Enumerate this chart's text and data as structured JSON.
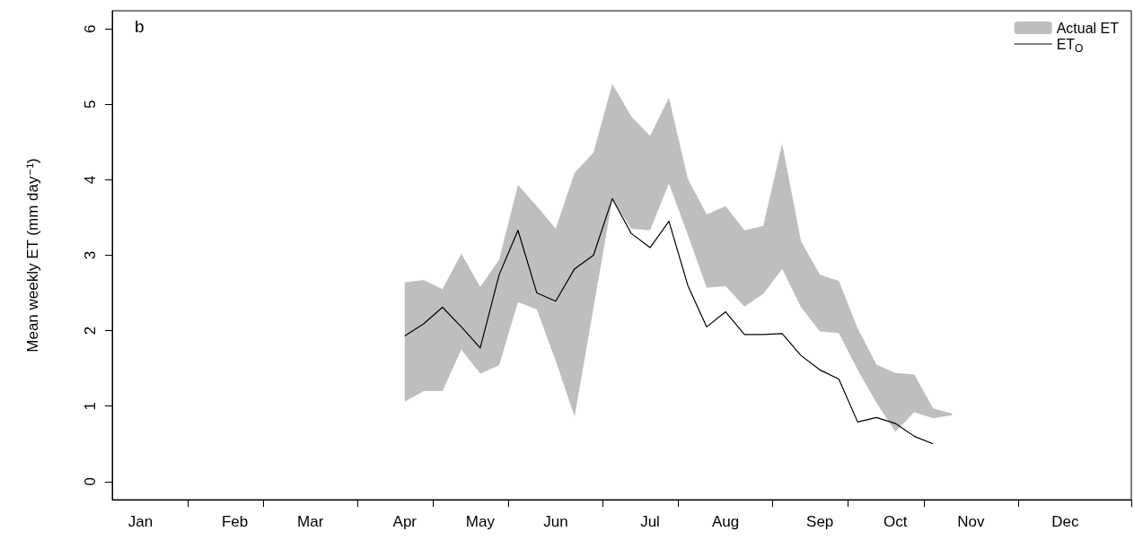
{
  "chart_data": {
    "type": "line",
    "ylabel": "Mean weekly ET (mm day⁻¹)",
    "annotations": [
      "b"
    ],
    "categories": [
      null,
      "Jan",
      null,
      null,
      null,
      null,
      "Feb",
      null,
      null,
      null,
      "Mar",
      null,
      null,
      null,
      null,
      "Apr",
      null,
      null,
      null,
      "May",
      null,
      null,
      null,
      "Jun",
      null,
      null,
      null,
      null,
      "Jul",
      null,
      null,
      null,
      "Aug",
      null,
      null,
      null,
      null,
      "Sep",
      null,
      null,
      null,
      "Oct",
      null,
      null,
      null,
      "Nov",
      null,
      null,
      null,
      null,
      "Dec",
      null,
      null,
      null
    ],
    "ylim": [
      -0.24,
      6.24
    ],
    "yticks": [
      0,
      1,
      2,
      3,
      4,
      5,
      6
    ],
    "grid": false,
    "legend": "top right",
    "marker": "none",
    "line_style": "solid",
    "series": [
      {
        "name": "Actual ET",
        "type": "area",
        "color": "#bebebe",
        "values": [
          null,
          null,
          null,
          null,
          null,
          null,
          null,
          null,
          null,
          null,
          null,
          null,
          null,
          null,
          null,
          null,
          null,
          null,
          null,
          null,
          null,
          null,
          null,
          null,
          null,
          null,
          null,
          null,
          null,
          null,
          null,
          null,
          null,
          null,
          null,
          null,
          null,
          null,
          null,
          null,
          null,
          null,
          null,
          null,
          null,
          null,
          null,
          null,
          null,
          null,
          null,
          null,
          null,
          null
        ],
        "upper": [
          null,
          null,
          null,
          null,
          null,
          null,
          null,
          null,
          null,
          null,
          null,
          null,
          null,
          null,
          null,
          2.64,
          2.67,
          2.55,
          3.02,
          2.58,
          2.94,
          3.93,
          3.65,
          3.35,
          4.09,
          4.36,
          5.27,
          4.84,
          4.58,
          5.09,
          4.01,
          3.54,
          3.65,
          3.33,
          3.39,
          4.48,
          3.18,
          2.74,
          2.66,
          2.03,
          1.55,
          1.44,
          1.42,
          0.97,
          0.9,
          null,
          null,
          null,
          null,
          null,
          null,
          null,
          null,
          null
        ],
        "lower": [
          null,
          null,
          null,
          null,
          null,
          null,
          null,
          null,
          null,
          null,
          null,
          null,
          null,
          null,
          null,
          1.06,
          1.2,
          1.2,
          1.75,
          1.43,
          1.54,
          2.38,
          2.28,
          1.6,
          0.86,
          2.3,
          3.74,
          3.35,
          3.33,
          3.95,
          3.27,
          2.57,
          2.59,
          2.32,
          2.49,
          2.82,
          2.31,
          1.99,
          1.97,
          1.48,
          1.04,
          0.66,
          0.92,
          0.84,
          0.88,
          null,
          null,
          null,
          null,
          null,
          null,
          null,
          null,
          null
        ]
      },
      {
        "name": "ET$_{O}$",
        "type": "line",
        "color": "#000000",
        "values": [
          null,
          null,
          null,
          null,
          null,
          null,
          null,
          null,
          null,
          null,
          null,
          null,
          null,
          null,
          null,
          1.93,
          2.09,
          2.31,
          2.05,
          1.77,
          2.74,
          3.33,
          2.5,
          2.39,
          2.82,
          3.0,
          3.75,
          3.29,
          3.1,
          3.45,
          2.6,
          2.05,
          2.25,
          1.95,
          1.95,
          1.96,
          1.67,
          1.48,
          1.36,
          0.79,
          0.85,
          0.77,
          0.6,
          0.5,
          null,
          null,
          null,
          null,
          null,
          null,
          null,
          null,
          null,
          null
        ]
      }
    ]
  }
}
